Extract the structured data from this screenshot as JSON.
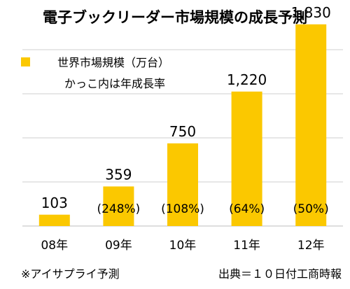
{
  "chart_data": {
    "type": "bar",
    "title": "電子ブックリーダー市場規模の成長予測",
    "legend": {
      "series_label": "世界市場規模（万台）",
      "note": "かっこ内は年成長率",
      "position": "top-left"
    },
    "categories": [
      "08年",
      "09年",
      "10年",
      "11年",
      "12年"
    ],
    "series": [
      {
        "name": "世界市場規模（万台）",
        "values": [
          103,
          359,
          750,
          1220,
          1830
        ],
        "value_labels": [
          "103",
          "359",
          "750",
          "1,220",
          "1,830"
        ],
        "growth_labels": [
          "",
          "(248%)",
          "(108%)",
          "(64%)",
          "(50%)"
        ],
        "color": "#fbc800"
      }
    ],
    "ylim": [
      0,
      2000
    ],
    "grid": true,
    "footnote_left": "※アイサプライ予測",
    "footnote_right": "出典＝１０日付工商時報"
  }
}
